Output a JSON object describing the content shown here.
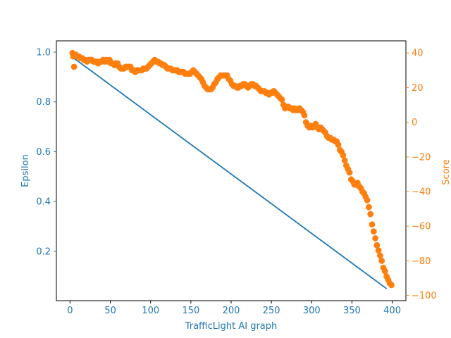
{
  "chart_data": {
    "type": "line+scatter (dual y-axis)",
    "xlabel": "TrafficLight AI graph",
    "ylabel_left": "Epsilon",
    "ylabel_right": "Score",
    "xlim": [
      -17,
      417
    ],
    "ylim_left": [
      0.0017,
      1.0453
    ],
    "ylim_right": [
      -103,
      47
    ],
    "x_ticks": [
      0,
      50,
      100,
      150,
      200,
      250,
      300,
      350,
      400
    ],
    "y_ticks_left": [
      0.2,
      0.4,
      0.6,
      0.8,
      1.0
    ],
    "y_ticks_right": [
      -100,
      -80,
      -60,
      -40,
      -20,
      0,
      20,
      40
    ],
    "colors": {
      "left": "#1f77b4",
      "right": "#ff7f0e"
    },
    "series": [
      {
        "axis": "left",
        "type": "line",
        "points": [
          [
            3,
            0.98
          ],
          [
            393,
            0.05
          ]
        ]
      },
      {
        "axis": "right",
        "type": "scatter",
        "points": [
          [
            3,
            40
          ],
          [
            4,
            38
          ],
          [
            5,
            32
          ],
          [
            7,
            39
          ],
          [
            9,
            38
          ],
          [
            11,
            38
          ],
          [
            13,
            37
          ],
          [
            15,
            37
          ],
          [
            17,
            36
          ],
          [
            19,
            36
          ],
          [
            21,
            35
          ],
          [
            23,
            36
          ],
          [
            25,
            36
          ],
          [
            27,
            36
          ],
          [
            29,
            35
          ],
          [
            31,
            35
          ],
          [
            33,
            35
          ],
          [
            35,
            34
          ],
          [
            37,
            35
          ],
          [
            39,
            35
          ],
          [
            41,
            36
          ],
          [
            43,
            35
          ],
          [
            45,
            36
          ],
          [
            47,
            35
          ],
          [
            49,
            36
          ],
          [
            51,
            34
          ],
          [
            53,
            34
          ],
          [
            55,
            33
          ],
          [
            57,
            34
          ],
          [
            59,
            34
          ],
          [
            61,
            32
          ],
          [
            63,
            31
          ],
          [
            65,
            31
          ],
          [
            67,
            31
          ],
          [
            69,
            32
          ],
          [
            71,
            32
          ],
          [
            73,
            32
          ],
          [
            75,
            32
          ],
          [
            77,
            30
          ],
          [
            79,
            30
          ],
          [
            81,
            29
          ],
          [
            83,
            30
          ],
          [
            85,
            30
          ],
          [
            87,
            30
          ],
          [
            89,
            30
          ],
          [
            91,
            31
          ],
          [
            93,
            31
          ],
          [
            95,
            31
          ],
          [
            97,
            32
          ],
          [
            99,
            33
          ],
          [
            101,
            34
          ],
          [
            103,
            35
          ],
          [
            105,
            36
          ],
          [
            107,
            35
          ],
          [
            109,
            35
          ],
          [
            111,
            34
          ],
          [
            113,
            34
          ],
          [
            115,
            33
          ],
          [
            117,
            33
          ],
          [
            119,
            32
          ],
          [
            121,
            31
          ],
          [
            123,
            31
          ],
          [
            125,
            31
          ],
          [
            127,
            30
          ],
          [
            129,
            30
          ],
          [
            131,
            30
          ],
          [
            133,
            30
          ],
          [
            135,
            29
          ],
          [
            137,
            29
          ],
          [
            139,
            29
          ],
          [
            141,
            29
          ],
          [
            143,
            28
          ],
          [
            145,
            28
          ],
          [
            147,
            28
          ],
          [
            149,
            28
          ],
          [
            151,
            29
          ],
          [
            153,
            30
          ],
          [
            155,
            29
          ],
          [
            157,
            28
          ],
          [
            159,
            27
          ],
          [
            161,
            26
          ],
          [
            163,
            25
          ],
          [
            165,
            23
          ],
          [
            167,
            21
          ],
          [
            169,
            20
          ],
          [
            171,
            19
          ],
          [
            173,
            19
          ],
          [
            175,
            19
          ],
          [
            177,
            20
          ],
          [
            179,
            22
          ],
          [
            181,
            23
          ],
          [
            183,
            25
          ],
          [
            185,
            26
          ],
          [
            187,
            27
          ],
          [
            189,
            27
          ],
          [
            191,
            27
          ],
          [
            193,
            27
          ],
          [
            195,
            27
          ],
          [
            197,
            25
          ],
          [
            199,
            24
          ],
          [
            201,
            22
          ],
          [
            203,
            21
          ],
          [
            205,
            21
          ],
          [
            207,
            20
          ],
          [
            209,
            20
          ],
          [
            211,
            21
          ],
          [
            213,
            21
          ],
          [
            215,
            22
          ],
          [
            217,
            22
          ],
          [
            219,
            21
          ],
          [
            221,
            20
          ],
          [
            223,
            21
          ],
          [
            225,
            22
          ],
          [
            227,
            22
          ],
          [
            229,
            21
          ],
          [
            231,
            21
          ],
          [
            233,
            20
          ],
          [
            235,
            19
          ],
          [
            237,
            18
          ],
          [
            239,
            18
          ],
          [
            241,
            18
          ],
          [
            243,
            17
          ],
          [
            245,
            17
          ],
          [
            247,
            16
          ],
          [
            249,
            17
          ],
          [
            251,
            17
          ],
          [
            253,
            18
          ],
          [
            255,
            17
          ],
          [
            257,
            16
          ],
          [
            259,
            15
          ],
          [
            261,
            14
          ],
          [
            263,
            13
          ],
          [
            265,
            10
          ],
          [
            267,
            8
          ],
          [
            269,
            9
          ],
          [
            271,
            9
          ],
          [
            273,
            8
          ],
          [
            275,
            8
          ],
          [
            277,
            7
          ],
          [
            279,
            8
          ],
          [
            281,
            7
          ],
          [
            283,
            7
          ],
          [
            285,
            8
          ],
          [
            287,
            7
          ],
          [
            289,
            6
          ],
          [
            291,
            4
          ],
          [
            293,
            0
          ],
          [
            295,
            -2
          ],
          [
            297,
            -3
          ],
          [
            299,
            -2
          ],
          [
            301,
            -3
          ],
          [
            303,
            -2
          ],
          [
            305,
            -1
          ],
          [
            307,
            -3
          ],
          [
            309,
            -4
          ],
          [
            311,
            -3
          ],
          [
            313,
            -4
          ],
          [
            315,
            -5
          ],
          [
            317,
            -6
          ],
          [
            319,
            -8
          ],
          [
            321,
            -9
          ],
          [
            323,
            -9
          ],
          [
            325,
            -10
          ],
          [
            327,
            -10
          ],
          [
            329,
            -11
          ],
          [
            331,
            -11
          ],
          [
            333,
            -13
          ],
          [
            335,
            -16
          ],
          [
            337,
            -17
          ],
          [
            339,
            -19
          ],
          [
            341,
            -22
          ],
          [
            343,
            -25
          ],
          [
            345,
            -27
          ],
          [
            347,
            -29
          ],
          [
            349,
            -33
          ],
          [
            351,
            -34
          ],
          [
            353,
            -36
          ],
          [
            355,
            -36
          ],
          [
            357,
            -35
          ],
          [
            359,
            -37
          ],
          [
            361,
            -38
          ],
          [
            363,
            -40
          ],
          [
            365,
            -41
          ],
          [
            367,
            -43
          ],
          [
            369,
            -45
          ],
          [
            371,
            -49
          ],
          [
            373,
            -53
          ],
          [
            375,
            -59
          ],
          [
            377,
            -63
          ],
          [
            379,
            -67
          ],
          [
            381,
            -71
          ],
          [
            383,
            -74
          ],
          [
            385,
            -77
          ],
          [
            387,
            -80
          ],
          [
            389,
            -84
          ],
          [
            391,
            -86
          ],
          [
            393,
            -89
          ],
          [
            395,
            -91
          ],
          [
            397,
            -93
          ],
          [
            399,
            -94
          ]
        ]
      }
    ]
  }
}
